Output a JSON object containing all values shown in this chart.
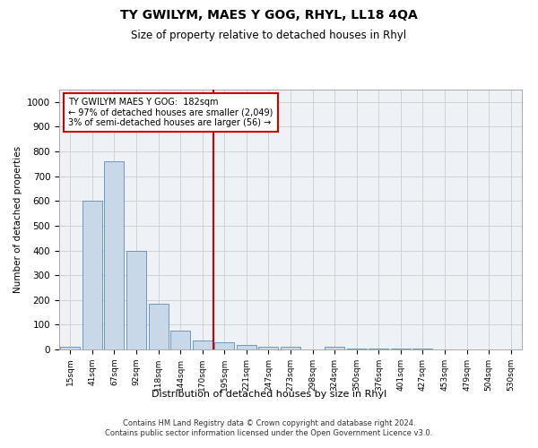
{
  "title": "TY GWILYM, MAES Y GOG, RHYL, LL18 4QA",
  "subtitle": "Size of property relative to detached houses in Rhyl",
  "xlabel": "Distribution of detached houses by size in Rhyl",
  "ylabel": "Number of detached properties",
  "bar_labels": [
    "15sqm",
    "41sqm",
    "67sqm",
    "92sqm",
    "118sqm",
    "144sqm",
    "170sqm",
    "195sqm",
    "221sqm",
    "247sqm",
    "273sqm",
    "298sqm",
    "324sqm",
    "350sqm",
    "376sqm",
    "401sqm",
    "427sqm",
    "453sqm",
    "479sqm",
    "504sqm",
    "530sqm"
  ],
  "bar_values": [
    12,
    600,
    760,
    400,
    185,
    75,
    35,
    30,
    18,
    12,
    10,
    0,
    12,
    5,
    3,
    2,
    2,
    1,
    1,
    0,
    0
  ],
  "bar_color": "#c8d8e8",
  "bar_edge_color": "#5b8db8",
  "ylim": [
    0,
    1050
  ],
  "yticks": [
    0,
    100,
    200,
    300,
    400,
    500,
    600,
    700,
    800,
    900,
    1000
  ],
  "vline_x_index": 7,
  "vline_color": "#cc0000",
  "annotation_lines": [
    "TY GWILYM MAES Y GOG:  182sqm",
    "← 97% of detached houses are smaller (2,049)",
    "3% of semi-detached houses are larger (56) →"
  ],
  "annotation_box_color": "#cc0000",
  "grid_color": "#cccccc",
  "background_color": "#eef2f7",
  "footer_line1": "Contains HM Land Registry data © Crown copyright and database right 2024.",
  "footer_line2": "Contains public sector information licensed under the Open Government Licence v3.0."
}
